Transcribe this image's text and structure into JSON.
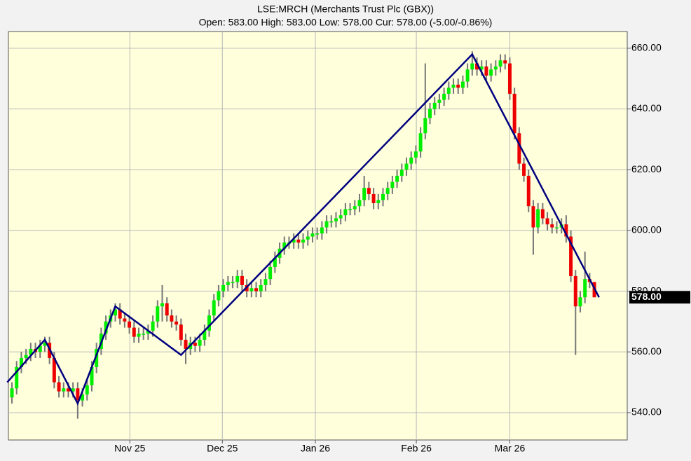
{
  "chart_data": {
    "type": "candlestick",
    "title": "LSE:MRCH (Merchants Trust Plc (GBX))",
    "subtitle": "Open: 583.00 High: 583.00 Low: 578.00 Cur: 578.00 (-5.00/-0.86%)",
    "open": [
      545,
      548,
      555,
      558,
      559,
      561,
      560,
      562,
      563,
      558,
      550,
      547,
      548,
      547,
      548,
      544,
      546,
      549,
      555,
      561,
      566,
      570,
      572,
      574,
      571,
      570,
      568,
      565,
      566,
      566,
      567,
      570,
      575,
      576,
      572,
      570,
      569,
      564,
      561,
      563,
      562,
      564,
      567,
      572,
      577,
      580,
      582,
      583,
      583,
      585,
      582,
      580,
      581,
      580,
      582,
      584,
      588,
      591,
      594,
      596,
      596,
      597,
      596,
      597,
      598,
      599,
      599,
      601,
      603,
      603,
      604,
      605,
      607,
      607,
      608,
      610,
      614,
      612,
      609,
      610,
      612,
      614,
      616,
      618,
      620,
      622,
      624,
      626,
      632,
      637,
      640,
      642,
      643,
      645,
      647,
      648,
      647,
      649,
      653,
      655,
      653,
      654,
      651,
      653,
      654,
      656,
      655,
      645,
      632,
      622,
      618,
      608,
      601,
      607,
      604,
      602,
      601,
      601,
      602,
      598,
      585,
      575,
      578,
      584,
      583
    ],
    "high": [
      550,
      557,
      560,
      561,
      563,
      563,
      564,
      565,
      565,
      560,
      552,
      550,
      550,
      550,
      550,
      548,
      551,
      557,
      563,
      568,
      572,
      574,
      576,
      576,
      573,
      572,
      570,
      568,
      568,
      569,
      572,
      577,
      582,
      578,
      574,
      572,
      571,
      566,
      565,
      565,
      566,
      569,
      574,
      579,
      582,
      584,
      585,
      585,
      587,
      587,
      584,
      583,
      583,
      584,
      586,
      590,
      593,
      596,
      598,
      598,
      599,
      599,
      599,
      600,
      601,
      601,
      603,
      605,
      605,
      606,
      607,
      609,
      609,
      610,
      612,
      618,
      616,
      614,
      612,
      614,
      616,
      618,
      620,
      622,
      624,
      626,
      628,
      634,
      655,
      642,
      644,
      645,
      647,
      649,
      650,
      650,
      651,
      655,
      659,
      657,
      656,
      656,
      655,
      656,
      658,
      658,
      657,
      647,
      634,
      624,
      620,
      610,
      609,
      609,
      606,
      604,
      603,
      604,
      605,
      600,
      587,
      580,
      593,
      586,
      583
    ],
    "low": [
      543,
      546,
      553,
      556,
      557,
      558,
      558,
      560,
      556,
      548,
      545,
      545,
      545,
      545,
      538,
      542,
      544,
      547,
      553,
      559,
      564,
      568,
      570,
      569,
      568,
      566,
      563,
      563,
      564,
      564,
      565,
      568,
      570,
      570,
      568,
      567,
      562,
      556,
      559,
      560,
      560,
      562,
      565,
      570,
      575,
      578,
      580,
      581,
      581,
      580,
      578,
      578,
      578,
      578,
      580,
      582,
      586,
      589,
      592,
      594,
      594,
      594,
      594,
      595,
      596,
      597,
      597,
      599,
      601,
      601,
      602,
      603,
      605,
      605,
      606,
      608,
      610,
      607,
      607,
      608,
      610,
      612,
      614,
      616,
      618,
      620,
      622,
      624,
      630,
      635,
      638,
      640,
      641,
      643,
      645,
      645,
      645,
      647,
      651,
      651,
      651,
      649,
      649,
      651,
      652,
      653,
      643,
      630,
      620,
      616,
      606,
      592,
      599,
      602,
      600,
      599,
      599,
      599,
      596,
      583,
      559,
      573,
      576,
      581,
      578
    ],
    "close": [
      548,
      555,
      558,
      559,
      561,
      560,
      562,
      563,
      558,
      550,
      547,
      548,
      547,
      548,
      544,
      546,
      549,
      555,
      561,
      566,
      570,
      572,
      574,
      571,
      570,
      568,
      565,
      566,
      566,
      567,
      570,
      575,
      576,
      572,
      570,
      569,
      564,
      561,
      563,
      562,
      564,
      567,
      572,
      577,
      580,
      582,
      583,
      583,
      585,
      582,
      580,
      581,
      580,
      582,
      584,
      588,
      591,
      594,
      596,
      596,
      597,
      596,
      597,
      598,
      599,
      599,
      601,
      603,
      603,
      604,
      605,
      607,
      607,
      608,
      610,
      614,
      612,
      609,
      610,
      612,
      614,
      616,
      618,
      620,
      622,
      624,
      626,
      632,
      637,
      640,
      642,
      643,
      645,
      647,
      648,
      647,
      649,
      653,
      655,
      653,
      654,
      651,
      653,
      654,
      656,
      655,
      645,
      632,
      622,
      618,
      608,
      601,
      607,
      604,
      602,
      601,
      601,
      602,
      598,
      585,
      575,
      578,
      584,
      583,
      578
    ],
    "up_color": "#00ee00",
    "down_color": "#ee0000",
    "wick_color": "#777777",
    "zigzag": {
      "color": "#000080",
      "x": [
        -1,
        7,
        14,
        22,
        36,
        98,
        125
      ],
      "y": [
        550,
        564,
        543,
        575,
        559,
        658,
        578
      ]
    },
    "last_price": {
      "value": 578,
      "label": "578.00"
    },
    "xlim": [
      -0.75,
      131
    ],
    "ylim": [
      531,
      665.5
    ],
    "xticks": [
      {
        "value": 25.1,
        "label": "Nov 25"
      },
      {
        "value": 44.8,
        "label": "Dec 25"
      },
      {
        "value": 64.6,
        "label": "Jan 26"
      },
      {
        "value": 86.1,
        "label": "Feb 26"
      },
      {
        "value": 106,
        "label": "Mar 26"
      }
    ],
    "yticks": [
      {
        "value": 540,
        "label": "540.00"
      },
      {
        "value": 560,
        "label": "560.00"
      },
      {
        "value": 580,
        "label": "580.00"
      },
      {
        "value": 600,
        "label": "600.00"
      },
      {
        "value": 620,
        "label": "620.00"
      },
      {
        "value": 640,
        "label": "640.00"
      },
      {
        "value": 660,
        "label": "660.00"
      }
    ],
    "grid": true
  }
}
